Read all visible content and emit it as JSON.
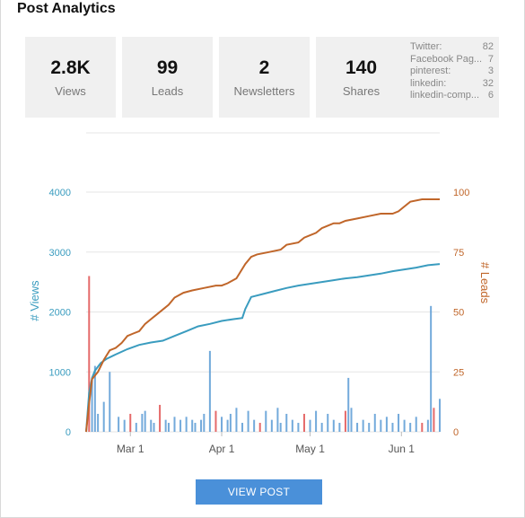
{
  "title": "Post Analytics",
  "stats": [
    {
      "value": "2.8K",
      "label": "Views"
    },
    {
      "value": "99",
      "label": "Leads"
    },
    {
      "value": "2",
      "label": "Newsletters"
    },
    {
      "value": "140",
      "label": "Shares"
    }
  ],
  "share_sources": [
    {
      "name": "Twitter:",
      "count": "82"
    },
    {
      "name": "Facebook Pag...",
      "count": "7"
    },
    {
      "name": "pinterest:",
      "count": "3"
    },
    {
      "name": "linkedin:",
      "count": "32"
    },
    {
      "name": "linkedin-comp...",
      "count": "6"
    }
  ],
  "button_label": "VIEW POST",
  "colors": {
    "views": "#3a9cbf",
    "leads": "#c0662a",
    "bar_blue": "#5b9bd5",
    "bar_red": "#e05050",
    "button": "#4a90d9"
  },
  "chart_data": {
    "type": "line",
    "ylabel": "# Views",
    "y2label": "# Leads",
    "ylim": [
      0,
      4000
    ],
    "y2lim": [
      0,
      100
    ],
    "yticks": [
      "0",
      "1000",
      "2000",
      "3000",
      "4000"
    ],
    "y2ticks": [
      "0",
      "25",
      "50",
      "75",
      "100"
    ],
    "xticks": [
      "Mar 1",
      "Apr 1",
      "May 1",
      "Jun 1"
    ],
    "xlim_day": [
      0,
      120
    ],
    "xtick_days": [
      15,
      46,
      76,
      107
    ],
    "series": [
      {
        "axis": "left",
        "x": [
          0,
          1,
          2,
          3,
          5,
          7,
          10,
          14,
          18,
          22,
          26,
          30,
          34,
          38,
          42,
          46,
          50,
          53,
          54,
          56,
          60,
          64,
          68,
          72,
          76,
          80,
          84,
          88,
          92,
          96,
          100,
          104,
          108,
          112,
          116,
          120
        ],
        "values": [
          0,
          650,
          900,
          1020,
          1150,
          1220,
          1290,
          1380,
          1450,
          1490,
          1520,
          1600,
          1680,
          1760,
          1800,
          1850,
          1880,
          1900,
          2050,
          2250,
          2300,
          2350,
          2400,
          2440,
          2470,
          2500,
          2530,
          2560,
          2580,
          2610,
          2640,
          2680,
          2710,
          2740,
          2780,
          2800
        ]
      },
      {
        "axis": "right",
        "x": [
          0,
          1,
          2,
          4,
          6,
          8,
          10,
          12,
          14,
          16,
          18,
          20,
          22,
          24,
          26,
          28,
          30,
          33,
          36,
          40,
          44,
          46,
          48,
          51,
          54,
          56,
          58,
          62,
          66,
          68,
          72,
          74,
          76,
          78,
          80,
          82,
          84,
          86,
          88,
          92,
          96,
          100,
          104,
          106,
          108,
          110,
          114,
          120
        ],
        "values": [
          0,
          12,
          22,
          25,
          30,
          34,
          35,
          37,
          40,
          41,
          42,
          45,
          47,
          49,
          51,
          53,
          56,
          58,
          59,
          60,
          61,
          61,
          62,
          64,
          70,
          73,
          74,
          75,
          76,
          78,
          79,
          81,
          82,
          83,
          85,
          86,
          87,
          87,
          88,
          89,
          90,
          91,
          91,
          92,
          94,
          96,
          97,
          97
        ]
      }
    ],
    "bars": {
      "axis": "left",
      "x": [
        1,
        2,
        3,
        4,
        6,
        8,
        11,
        13,
        15,
        17,
        19,
        20,
        22,
        23,
        25,
        27,
        28,
        30,
        32,
        34,
        36,
        37,
        39,
        40,
        42,
        44,
        46,
        48,
        49,
        51,
        53,
        55,
        57,
        59,
        61,
        63,
        65,
        66,
        68,
        70,
        72,
        74,
        76,
        78,
        80,
        82,
        84,
        86,
        88,
        89,
        90,
        92,
        94,
        96,
        98,
        100,
        102,
        104,
        106,
        108,
        110,
        112,
        114,
        116,
        117,
        118,
        120
      ],
      "values": [
        2600,
        900,
        1100,
        300,
        500,
        1000,
        250,
        200,
        300,
        150,
        300,
        350,
        200,
        150,
        450,
        200,
        150,
        250,
        200,
        250,
        200,
        150,
        200,
        300,
        1350,
        350,
        250,
        200,
        300,
        400,
        150,
        350,
        200,
        150,
        350,
        200,
        400,
        150,
        300,
        200,
        150,
        300,
        200,
        350,
        150,
        300,
        200,
        150,
        350,
        900,
        400,
        150,
        200,
        150,
        300,
        200,
        250,
        150,
        300,
        200,
        150,
        250,
        150,
        200,
        2100,
        400,
        550
      ],
      "red_x": [
        1,
        15,
        25,
        44,
        59,
        74,
        88,
        114,
        118
      ]
    }
  }
}
